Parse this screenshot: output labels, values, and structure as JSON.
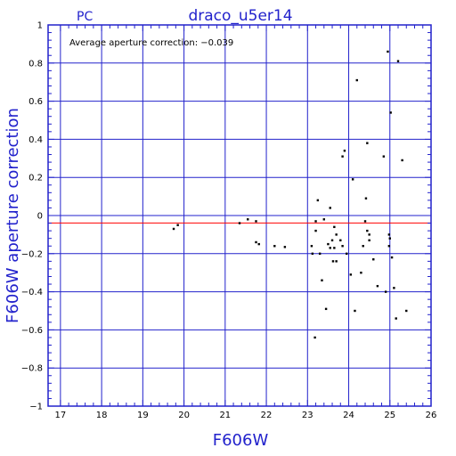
{
  "header": {
    "left_label": "PC",
    "title": "draco_u5er14"
  },
  "colors": {
    "frame": "#2222cc",
    "grid": "#2222cc",
    "reference_line": "#ff0000",
    "points": "#000000",
    "labels": "#2222cc"
  },
  "chart_data": {
    "type": "scatter",
    "title": "draco_u5er14",
    "xlabel": "F606W",
    "ylabel": "F606W aperture correction",
    "xlim": [
      16.7,
      26
    ],
    "ylim": [
      -1,
      1
    ],
    "x_ticks": [
      "17",
      "18",
      "19",
      "20",
      "21",
      "22",
      "23",
      "24",
      "25",
      "26"
    ],
    "y_ticks": [
      "1",
      "0.8",
      "0.6",
      "0.4",
      "0.2",
      "0",
      "−0.2",
      "−0.4",
      "−0.6",
      "−0.8",
      "−1"
    ],
    "grid": true,
    "annotation": "Average aperture correction: −0.039",
    "reference_line_y": -0.039,
    "points": [
      [
        19.75,
        -0.07
      ],
      [
        19.85,
        -0.05
      ],
      [
        21.35,
        -0.04
      ],
      [
        21.55,
        -0.02
      ],
      [
        21.75,
        -0.03
      ],
      [
        21.75,
        -0.14
      ],
      [
        21.82,
        -0.15
      ],
      [
        22.2,
        -0.16
      ],
      [
        22.45,
        -0.165
      ],
      [
        23.1,
        -0.16
      ],
      [
        23.12,
        -0.2
      ],
      [
        23.18,
        -0.64
      ],
      [
        23.2,
        -0.03
      ],
      [
        23.2,
        -0.08
      ],
      [
        23.25,
        0.08
      ],
      [
        23.3,
        -0.2
      ],
      [
        23.35,
        -0.34
      ],
      [
        23.4,
        -0.02
      ],
      [
        23.45,
        -0.49
      ],
      [
        23.5,
        -0.15
      ],
      [
        23.55,
        0.04
      ],
      [
        23.55,
        -0.17
      ],
      [
        23.6,
        -0.13
      ],
      [
        23.62,
        -0.24
      ],
      [
        23.65,
        -0.06
      ],
      [
        23.65,
        -0.17
      ],
      [
        23.7,
        -0.1
      ],
      [
        23.7,
        -0.24
      ],
      [
        23.8,
        -0.13
      ],
      [
        23.85,
        -0.16
      ],
      [
        23.85,
        0.31
      ],
      [
        23.9,
        0.34
      ],
      [
        23.95,
        -0.2
      ],
      [
        24.05,
        -0.31
      ],
      [
        24.1,
        0.19
      ],
      [
        24.15,
        -0.5
      ],
      [
        24.2,
        0.71
      ],
      [
        24.3,
        -0.3
      ],
      [
        24.35,
        -0.16
      ],
      [
        24.4,
        -0.03
      ],
      [
        24.42,
        0.09
      ],
      [
        24.45,
        0.38
      ],
      [
        24.45,
        -0.08
      ],
      [
        24.5,
        -0.1
      ],
      [
        24.5,
        -0.13
      ],
      [
        24.6,
        -0.23
      ],
      [
        24.7,
        -0.37
      ],
      [
        24.85,
        0.31
      ],
      [
        24.9,
        -0.4
      ],
      [
        24.95,
        0.86
      ],
      [
        24.98,
        -0.1
      ],
      [
        24.98,
        -0.16
      ],
      [
        25.0,
        -0.12
      ],
      [
        25.02,
        0.54
      ],
      [
        25.05,
        -0.22
      ],
      [
        25.1,
        -0.38
      ],
      [
        25.15,
        -0.54
      ],
      [
        25.2,
        0.81
      ],
      [
        25.3,
        0.29
      ],
      [
        25.4,
        -0.5
      ]
    ]
  }
}
